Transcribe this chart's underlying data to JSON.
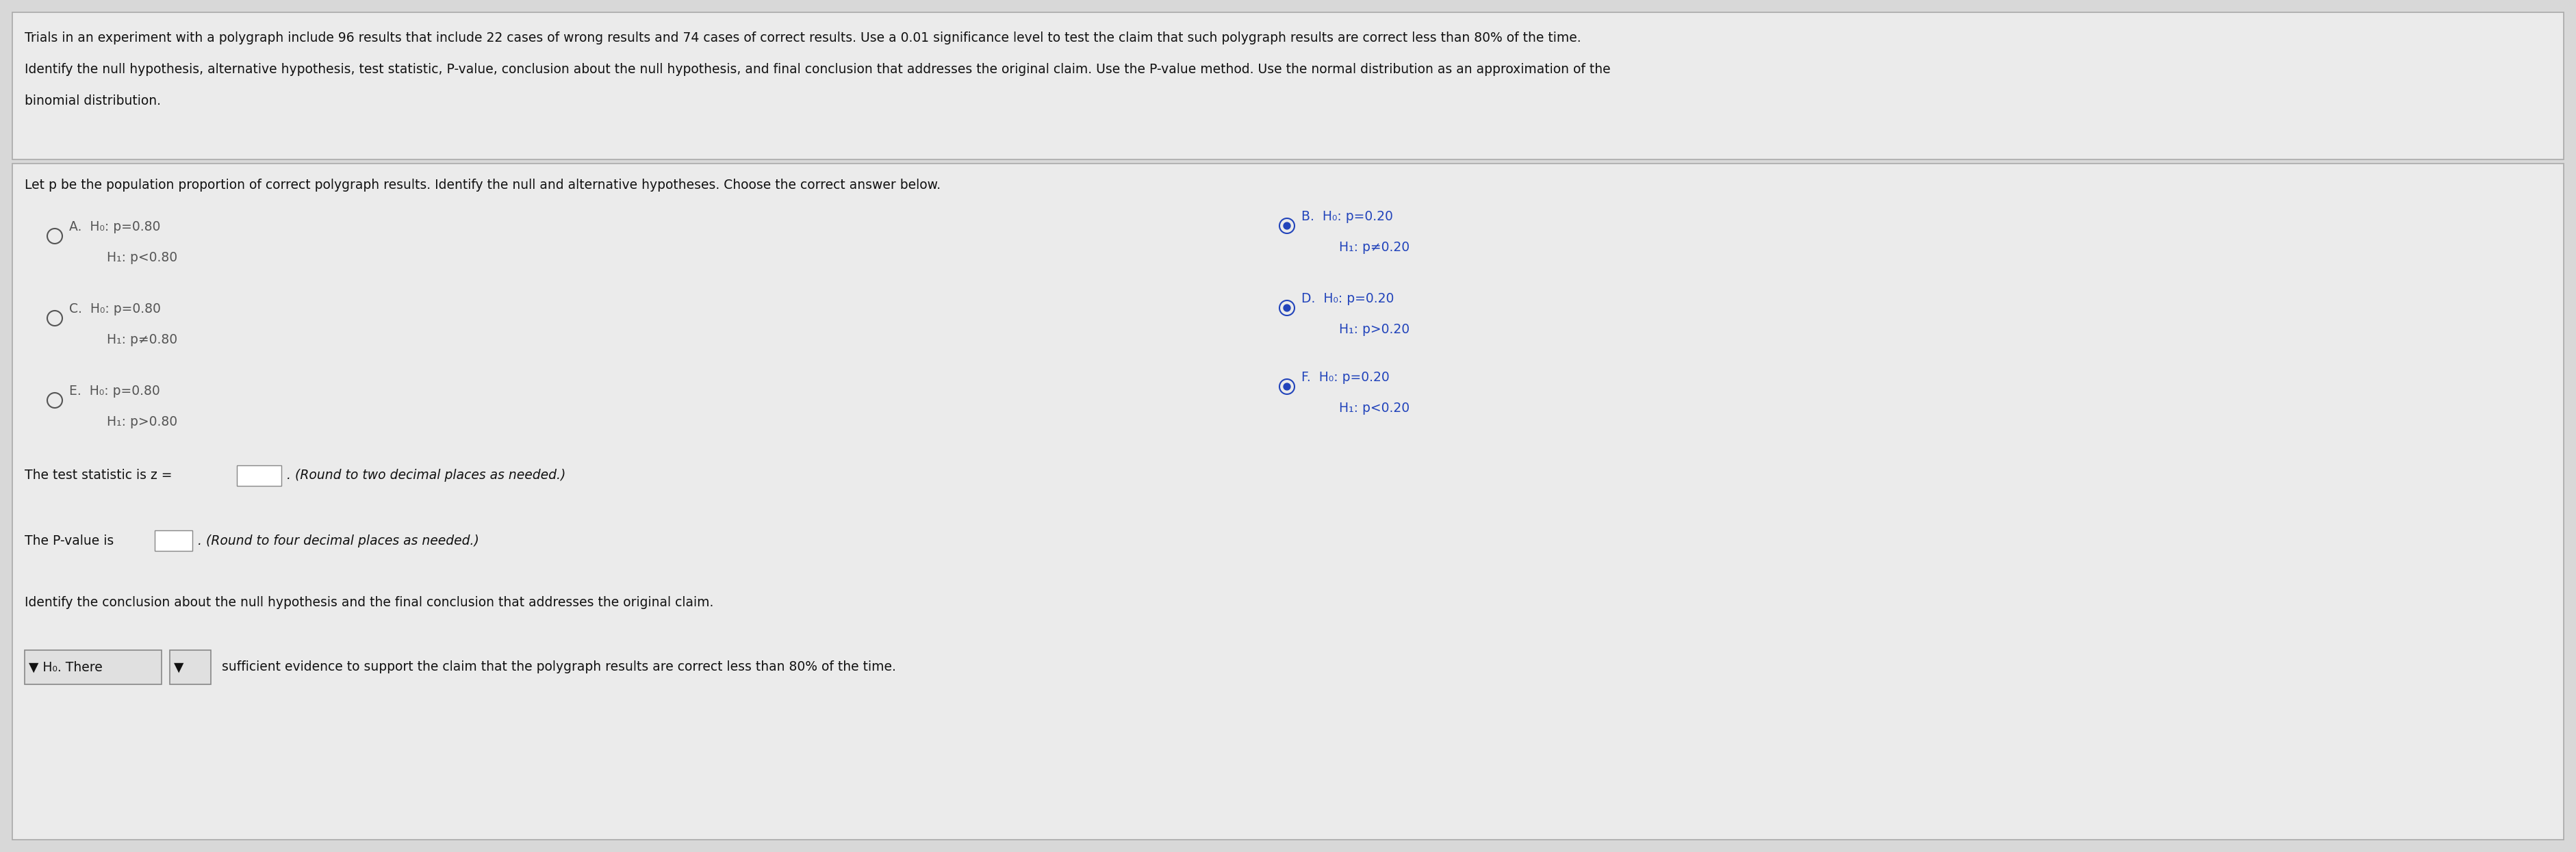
{
  "bg_color": "#d8d8d8",
  "box_color": "#ebebeb",
  "white": "#ffffff",
  "input_box_color": "#ffffff",
  "dropdown_color": "#e0e0e0",
  "border_color": "#aaaaaa",
  "text_color": "#111111",
  "blue_color": "#2244bb",
  "gray_circle_color": "#555555",
  "header_line1": "Trials in an experiment with a polygraph include 96 results that include 22 cases of wrong results and 74 cases of correct results. Use a 0.01 significance level to test the claim that such polygraph results are correct less than 80% of the time.",
  "header_line2": "Identify the null hypothesis, alternative hypothesis, test statistic, P-value, conclusion about the null hypothesis, and final conclusion that addresses the original claim. Use the P-value method. Use the normal distribution as an approximation of the",
  "header_line3": "binomial distribution.",
  "section_label": "Let p be the population proportion of correct polygraph results. Identify the null and alternative hypotheses. Choose the correct answer below.",
  "optA_1": "A.  H₀: p=0.80",
  "optA_2": "     H₁: p<0.80",
  "optB_1": "B.  H₀: p=0.20",
  "optB_2": "     H₁: p≠0.20",
  "optC_1": "C.  H₀: p=0.80",
  "optC_2": "     H₁: p≠0.80",
  "optD_1": "D.  H₀: p=0.20",
  "optD_2": "     H₁: p>0.20",
  "optE_1": "E.  H₀: p=0.80",
  "optE_2": "     H₁: p>0.80",
  "optF_1": "F.  H₀: p=0.20",
  "optF_2": "     H₁: p<0.20",
  "ts_label": "The test statistic is z =",
  "ts_suffix": ". (Round to two decimal places as needed.)",
  "pv_label": "The P-value is",
  "pv_suffix": ". (Round to four decimal places as needed.)",
  "conc_label": "Identify the conclusion about the null hypothesis and the final conclusion that addresses the original claim.",
  "dd1_text": "▼ H₀. There",
  "dd2_text": "▼",
  "conc_suffix": " sufficient evidence to support the claim that the polygraph results are correct less than 80% of the time.",
  "header_fs": 13.5,
  "body_fs": 13.5,
  "option_fs": 13.5,
  "small_fs": 11.5
}
